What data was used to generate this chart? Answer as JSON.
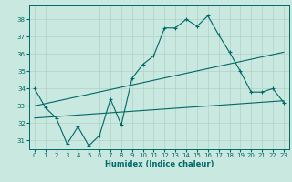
{
  "bg_color": "#c8e8e0",
  "grid_color": "#b0d0c8",
  "line_color": "#006868",
  "line1_x": [
    0,
    1,
    2,
    3,
    4,
    5,
    6,
    7,
    8,
    9,
    10,
    11,
    12,
    13,
    14,
    15,
    16,
    17,
    18,
    19,
    20,
    21,
    22,
    23
  ],
  "line1_y": [
    34.0,
    32.9,
    32.3,
    30.8,
    31.8,
    30.7,
    31.3,
    33.4,
    31.9,
    34.6,
    35.4,
    35.9,
    37.5,
    37.5,
    38.0,
    37.6,
    38.2,
    37.1,
    36.1,
    35.0,
    33.8,
    33.8,
    34.0,
    33.2
  ],
  "line2_x": [
    0,
    23
  ],
  "line2_y": [
    33.0,
    36.1
  ],
  "line3_x": [
    0,
    23
  ],
  "line3_y": [
    32.3,
    33.3
  ],
  "xlabel": "Humidex (Indice chaleur)",
  "ylim": [
    30.5,
    38.8
  ],
  "xlim": [
    -0.5,
    23.5
  ],
  "yticks": [
    31,
    32,
    33,
    34,
    35,
    36,
    37,
    38
  ],
  "xticks": [
    0,
    1,
    2,
    3,
    4,
    5,
    6,
    7,
    8,
    9,
    10,
    11,
    12,
    13,
    14,
    15,
    16,
    17,
    18,
    19,
    20,
    21,
    22,
    23
  ],
  "xlabel_fontsize": 6.0,
  "tick_fontsize": 5.0
}
